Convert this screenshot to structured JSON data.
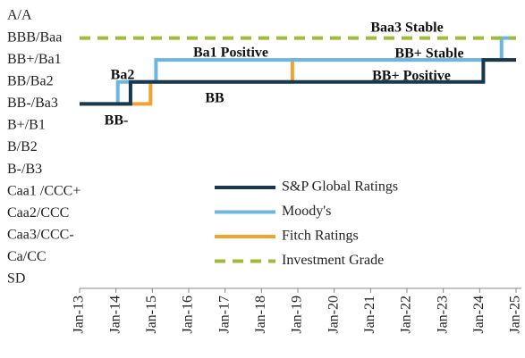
{
  "chart_data": {
    "type": "line",
    "annotations": [
      "Baa3 Stable",
      "Ba1 Positive",
      "BB+ Stable",
      "Ba2",
      "BB+ Positive",
      "BB",
      "BB-"
    ],
    "xlim": [
      2013,
      2025
    ],
    "xticks": [
      {
        "value": 2013,
        "label": "Jan-13"
      },
      {
        "value": 2014,
        "label": "Jan-14"
      },
      {
        "value": 2015,
        "label": "Jan-15"
      },
      {
        "value": 2016,
        "label": "Jan-16"
      },
      {
        "value": 2017,
        "label": "Jan-17"
      },
      {
        "value": 2018,
        "label": "Jan-18"
      },
      {
        "value": 2019,
        "label": "Jan-19"
      },
      {
        "value": 2020,
        "label": "Jan-20"
      },
      {
        "value": 2021,
        "label": "Jan-21"
      },
      {
        "value": 2022,
        "label": "Jan-22"
      },
      {
        "value": 2023,
        "label": "Jan-23"
      },
      {
        "value": 2024,
        "label": "Jan-24"
      },
      {
        "value": 2025,
        "label": "Jan-25"
      }
    ],
    "ylim": [
      0,
      12
    ],
    "yticks": [
      {
        "value": 12,
        "label": "A/A"
      },
      {
        "value": 11,
        "label": "BBB/Baa"
      },
      {
        "value": 10,
        "label": "BB+/Ba1"
      },
      {
        "value": 9,
        "label": "BB/Ba2"
      },
      {
        "value": 8,
        "label": "BB-/Ba3"
      },
      {
        "value": 7,
        "label": "B+/B1"
      },
      {
        "value": 6,
        "label": "B/B2"
      },
      {
        "value": 5,
        "label": "B-/B3"
      },
      {
        "value": 4,
        "label": "Caa1 /CCC+"
      },
      {
        "value": 3,
        "label": "Caa2/CCC"
      },
      {
        "value": 2,
        "label": "Caa3/CCC-"
      },
      {
        "value": 1,
        "label": "Ca/CC"
      },
      {
        "value": 0,
        "label": "SD"
      }
    ],
    "series": [
      {
        "name": "S&P Global Ratings",
        "color": "#17384f",
        "x": [
          2013,
          2014.4,
          2014.4,
          2024.1,
          2024.1,
          2025
        ],
        "values": [
          8,
          8,
          9,
          9,
          10,
          10
        ]
      },
      {
        "name": "Moody's",
        "color": "#6cb7e2",
        "x": [
          2014.05,
          2014.05,
          2015.1,
          2015.1,
          2024.6,
          2024.6,
          2025
        ],
        "values": [
          8,
          9,
          9,
          10,
          10,
          11,
          11
        ]
      },
      {
        "name": "Fitch Ratings",
        "color": "#f2a230",
        "x": [
          2013,
          2014.95,
          2014.95,
          2018.85,
          2018.85,
          2025
        ],
        "values": [
          8,
          8,
          9,
          9,
          10,
          10
        ]
      },
      {
        "name": "Investment Grade",
        "color": "#9cbd3a",
        "dashed": true,
        "x": [
          2013,
          2025
        ],
        "values": [
          11,
          11
        ]
      }
    ]
  }
}
